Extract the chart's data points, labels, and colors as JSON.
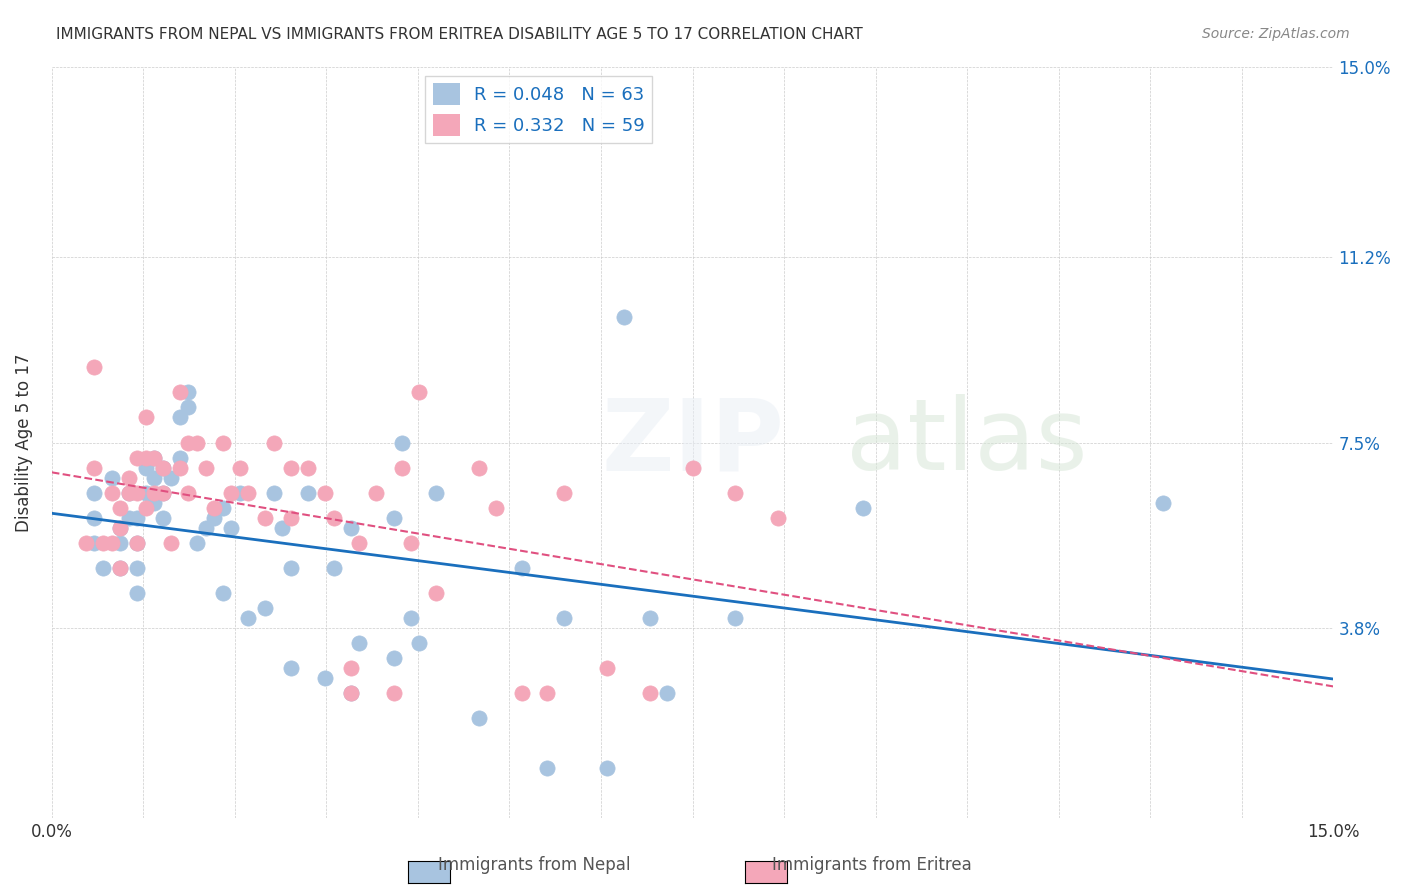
{
  "title": "IMMIGRANTS FROM NEPAL VS IMMIGRANTS FROM ERITREA DISABILITY AGE 5 TO 17 CORRELATION CHART",
  "source": "Source: ZipAtlas.com",
  "xlabel": "",
  "ylabel": "Disability Age 5 to 17",
  "xlim": [
    0.0,
    0.15
  ],
  "ylim": [
    0.0,
    0.15
  ],
  "xtick_labels": [
    "0.0%",
    "",
    "",
    "",
    "",
    "",
    "",
    "",
    "",
    "",
    "",
    "",
    "",
    "",
    "15.0%"
  ],
  "ytick_vals": [
    0.0,
    0.038,
    0.075,
    0.112,
    0.15
  ],
  "ytick_labels": [
    "",
    "3.8%",
    "7.5%",
    "11.2%",
    "15.0%"
  ],
  "nepal_color": "#a8c4e0",
  "eritrea_color": "#f4a7b9",
  "nepal_line_color": "#1a6fbd",
  "eritrea_line_color": "#e05080",
  "nepal_R": 0.048,
  "nepal_N": 63,
  "eritrea_R": 0.332,
  "eritrea_N": 59,
  "watermark": "ZIPatlas",
  "nepal_scatter_x": [
    0.005,
    0.005,
    0.005,
    0.006,
    0.007,
    0.008,
    0.008,
    0.008,
    0.009,
    0.009,
    0.01,
    0.01,
    0.01,
    0.01,
    0.011,
    0.011,
    0.012,
    0.012,
    0.012,
    0.013,
    0.013,
    0.013,
    0.014,
    0.015,
    0.015,
    0.016,
    0.016,
    0.017,
    0.018,
    0.019,
    0.02,
    0.02,
    0.021,
    0.022,
    0.023,
    0.025,
    0.026,
    0.027,
    0.028,
    0.028,
    0.03,
    0.032,
    0.033,
    0.035,
    0.035,
    0.036,
    0.04,
    0.04,
    0.041,
    0.042,
    0.043,
    0.045,
    0.05,
    0.055,
    0.058,
    0.06,
    0.065,
    0.067,
    0.07,
    0.072,
    0.08,
    0.095,
    0.13
  ],
  "nepal_scatter_y": [
    0.065,
    0.06,
    0.055,
    0.05,
    0.068,
    0.058,
    0.055,
    0.05,
    0.065,
    0.06,
    0.06,
    0.055,
    0.05,
    0.045,
    0.07,
    0.065,
    0.072,
    0.068,
    0.063,
    0.07,
    0.065,
    0.06,
    0.068,
    0.08,
    0.072,
    0.085,
    0.082,
    0.055,
    0.058,
    0.06,
    0.062,
    0.045,
    0.058,
    0.065,
    0.04,
    0.042,
    0.065,
    0.058,
    0.05,
    0.03,
    0.065,
    0.028,
    0.05,
    0.058,
    0.025,
    0.035,
    0.06,
    0.032,
    0.075,
    0.04,
    0.035,
    0.065,
    0.02,
    0.05,
    0.01,
    0.04,
    0.01,
    0.1,
    0.04,
    0.025,
    0.04,
    0.062,
    0.063
  ],
  "eritrea_scatter_x": [
    0.004,
    0.005,
    0.005,
    0.006,
    0.007,
    0.007,
    0.008,
    0.008,
    0.008,
    0.009,
    0.009,
    0.01,
    0.01,
    0.01,
    0.011,
    0.011,
    0.011,
    0.012,
    0.012,
    0.013,
    0.013,
    0.014,
    0.015,
    0.015,
    0.016,
    0.016,
    0.017,
    0.018,
    0.019,
    0.02,
    0.021,
    0.022,
    0.023,
    0.025,
    0.026,
    0.028,
    0.028,
    0.03,
    0.032,
    0.033,
    0.035,
    0.035,
    0.036,
    0.038,
    0.04,
    0.041,
    0.042,
    0.043,
    0.045,
    0.05,
    0.052,
    0.055,
    0.058,
    0.06,
    0.065,
    0.07,
    0.075,
    0.08,
    0.085
  ],
  "eritrea_scatter_y": [
    0.055,
    0.09,
    0.07,
    0.055,
    0.065,
    0.055,
    0.062,
    0.058,
    0.05,
    0.068,
    0.065,
    0.072,
    0.065,
    0.055,
    0.08,
    0.072,
    0.062,
    0.072,
    0.065,
    0.07,
    0.065,
    0.055,
    0.085,
    0.07,
    0.075,
    0.065,
    0.075,
    0.07,
    0.062,
    0.075,
    0.065,
    0.07,
    0.065,
    0.06,
    0.075,
    0.06,
    0.07,
    0.07,
    0.065,
    0.06,
    0.025,
    0.03,
    0.055,
    0.065,
    0.025,
    0.07,
    0.055,
    0.085,
    0.045,
    0.07,
    0.062,
    0.025,
    0.025,
    0.065,
    0.03,
    0.025,
    0.07,
    0.065,
    0.06
  ]
}
